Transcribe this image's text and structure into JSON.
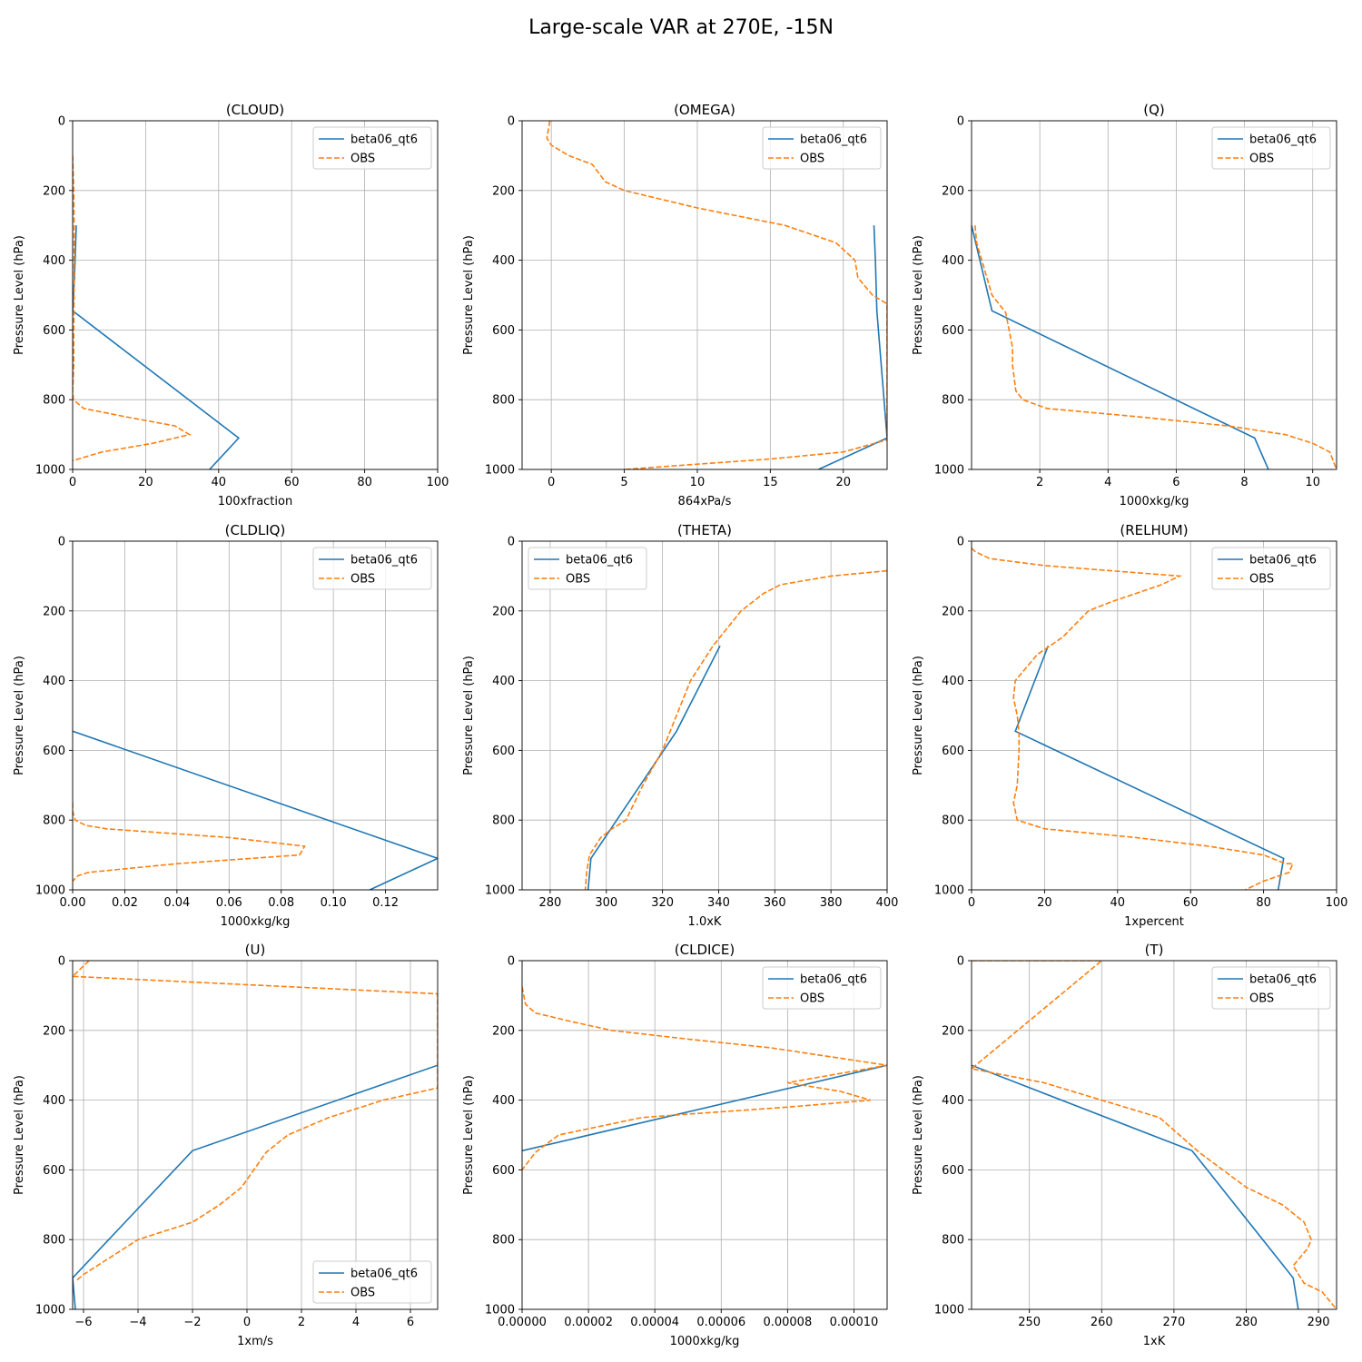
{
  "title": "Large-scale VAR at 270E, -15N",
  "colors": {
    "model": "#1f77b4",
    "obs": "#ff7f0e"
  },
  "chart_data": [
    {
      "type": "line",
      "title": "(CLOUD)",
      "xlabel": "100xfraction",
      "ylabel": "Pressure Level (hPa)",
      "xlim": [
        0,
        100
      ],
      "ylim": [
        1000,
        0
      ],
      "grid": true,
      "legend": "upper-right",
      "xticks": [
        0,
        20,
        40,
        60,
        80,
        100
      ],
      "xtick_labels": [
        "0",
        "20",
        "40",
        "60",
        "80",
        "100"
      ],
      "yticks": [
        0,
        200,
        400,
        600,
        800,
        1000
      ],
      "ytick_labels": [
        "0",
        "200",
        "400",
        "600",
        "800",
        "1000"
      ],
      "series": [
        {
          "name": "beta06_qt6",
          "style": "solid",
          "x": [
            1,
            0.5,
            0,
            45.5,
            37.5
          ],
          "y": [
            300,
            450,
            545,
            910,
            1000
          ]
        },
        {
          "name": "OBS",
          "style": "dashed",
          "x": [
            0,
            0.3,
            0.4,
            0.4,
            0.3,
            0.3,
            0,
            0.2,
            3,
            15,
            28,
            32,
            22,
            8,
            0
          ],
          "y": [
            100,
            200,
            300,
            500,
            600,
            700,
            775,
            800,
            825,
            850,
            875,
            900,
            925,
            950,
            975
          ]
        }
      ]
    },
    {
      "type": "line",
      "title": "(OMEGA)",
      "xlabel": "864xPa/s",
      "ylabel": "Pressure Level (hPa)",
      "xlim": [
        -2,
        23
      ],
      "ylim": [
        1000,
        0
      ],
      "grid": true,
      "legend": "upper-right",
      "xticks": [
        0,
        5,
        10,
        15,
        20
      ],
      "xtick_labels": [
        "0",
        "5",
        "10",
        "15",
        "20"
      ],
      "yticks": [
        0,
        200,
        400,
        600,
        800,
        1000
      ],
      "ytick_labels": [
        "0",
        "200",
        "400",
        "600",
        "800",
        "1000"
      ],
      "series": [
        {
          "name": "beta06_qt6",
          "style": "solid",
          "x": [
            22.1,
            22.2,
            22.3,
            23,
            18.3
          ],
          "y": [
            300,
            400,
            545,
            910,
            1000
          ]
        },
        {
          "name": "OBS",
          "style": "dashed",
          "x": [
            -0.1,
            -0.3,
            0,
            1.2,
            2.8,
            3.7,
            5,
            7.5,
            10,
            16,
            19.5,
            20.8,
            21,
            22,
            23,
            23,
            23,
            23,
            23,
            23,
            23,
            23,
            23,
            20,
            15,
            10,
            5
          ],
          "y": [
            0,
            50,
            70,
            100,
            125,
            175,
            200,
            225,
            250,
            300,
            350,
            400,
            450,
            500,
            525,
            550,
            600,
            650,
            700,
            750,
            800,
            850,
            915,
            950,
            970,
            985,
            1000
          ]
        }
      ]
    },
    {
      "type": "line",
      "title": "(Q)",
      "xlabel": "1000xkg/kg",
      "ylabel": "Pressure Level (hPa)",
      "xlim": [
        0,
        10.7
      ],
      "ylim": [
        1000,
        0
      ],
      "grid": true,
      "legend": "upper-right",
      "xticks": [
        2,
        4,
        6,
        8,
        10
      ],
      "xtick_labels": [
        "2",
        "4",
        "6",
        "8",
        "10"
      ],
      "yticks": [
        0,
        200,
        400,
        600,
        800,
        1000
      ],
      "ytick_labels": [
        "0",
        "200",
        "400",
        "600",
        "800",
        "1000"
      ],
      "series": [
        {
          "name": "beta06_qt6",
          "style": "solid",
          "x": [
            0,
            0.6,
            8.3,
            8.7
          ],
          "y": [
            300,
            545,
            910,
            1000
          ]
        },
        {
          "name": "OBS",
          "style": "dashed",
          "x": [
            0.1,
            0.15,
            0.3,
            0.6,
            1,
            1.1,
            1.2,
            1.2,
            1.3,
            1.5,
            2.2,
            5,
            7.5,
            9.2,
            10,
            10.5,
            10.7
          ],
          "y": [
            300,
            350,
            400,
            500,
            550,
            600,
            650,
            700,
            775,
            800,
            825,
            850,
            875,
            900,
            925,
            950,
            1000
          ]
        }
      ]
    },
    {
      "type": "line",
      "title": "(CLDLIQ)",
      "xlabel": "1000xkg/kg",
      "ylabel": "Pressure Level (hPa)",
      "xlim": [
        0,
        0.14
      ],
      "ylim": [
        1000,
        0
      ],
      "grid": true,
      "legend": "upper-right",
      "xticks": [
        0,
        0.02,
        0.04,
        0.06,
        0.08,
        0.1,
        0.12
      ],
      "xtick_labels": [
        "0.00",
        "0.02",
        "0.04",
        "0.06",
        "0.08",
        "0.10",
        "0.12"
      ],
      "yticks": [
        0,
        200,
        400,
        600,
        800,
        1000
      ],
      "ytick_labels": [
        "0",
        "200",
        "400",
        "600",
        "800",
        "1000"
      ],
      "series": [
        {
          "name": "beta06_qt6",
          "style": "solid",
          "x": [
            0,
            0.14,
            0.114
          ],
          "y": [
            545,
            910,
            1000
          ]
        },
        {
          "name": "OBS",
          "style": "dashed",
          "x": [
            0,
            0,
            0.001,
            0.005,
            0.013,
            0.06,
            0.089,
            0.087,
            0.04,
            0.006,
            0.002,
            0
          ],
          "y": [
            750,
            775,
            800,
            815,
            825,
            850,
            875,
            900,
            925,
            950,
            960,
            975
          ]
        }
      ]
    },
    {
      "type": "line",
      "title": "(THETA)",
      "xlabel": "1.0xK",
      "ylabel": "Pressure Level (hPa)",
      "xlim": [
        270,
        400
      ],
      "ylim": [
        1000,
        0
      ],
      "grid": true,
      "legend": "upper-left",
      "xticks": [
        280,
        300,
        320,
        340,
        360,
        380,
        400
      ],
      "xtick_labels": [
        "280",
        "300",
        "320",
        "340",
        "360",
        "380",
        "400"
      ],
      "yticks": [
        0,
        200,
        400,
        600,
        800,
        1000
      ],
      "ytick_labels": [
        "0",
        "200",
        "400",
        "600",
        "800",
        "1000"
      ],
      "series": [
        {
          "name": "beta06_qt6",
          "style": "solid",
          "x": [
            340.5,
            325,
            294.5,
            293.5
          ],
          "y": [
            300,
            545,
            910,
            1000
          ]
        },
        {
          "name": "OBS",
          "style": "dashed",
          "x": [
            400,
            380,
            362,
            356,
            348,
            343,
            338,
            330,
            320,
            313,
            307,
            302,
            298,
            294,
            293,
            292.5
          ],
          "y": [
            85,
            100,
            125,
            150,
            200,
            250,
            300,
            400,
            600,
            700,
            800,
            825,
            850,
            900,
            950,
            1000
          ]
        }
      ]
    },
    {
      "type": "line",
      "title": "(RELHUM)",
      "xlabel": "1xpercent",
      "ylabel": "Pressure Level (hPa)",
      "xlim": [
        0,
        100
      ],
      "ylim": [
        1000,
        0
      ],
      "grid": true,
      "legend": "upper-right",
      "xticks": [
        0,
        20,
        40,
        60,
        80,
        100
      ],
      "xtick_labels": [
        "0",
        "20",
        "40",
        "60",
        "80",
        "100"
      ],
      "yticks": [
        0,
        200,
        400,
        600,
        800,
        1000
      ],
      "ytick_labels": [
        "0",
        "200",
        "400",
        "600",
        "800",
        "1000"
      ],
      "series": [
        {
          "name": "beta06_qt6",
          "style": "solid",
          "x": [
            21,
            12,
            85.5,
            84
          ],
          "y": [
            300,
            545,
            910,
            1000
          ]
        },
        {
          "name": "OBS",
          "style": "dashed",
          "x": [
            0,
            1,
            5,
            20,
            57,
            52,
            45,
            38,
            32,
            25,
            18,
            14,
            12,
            11.5,
            12.5,
            13,
            13,
            12.5,
            11.5,
            12.5,
            20,
            45,
            65,
            80,
            86,
            88,
            87,
            80,
            75
          ],
          "y": [
            20,
            30,
            50,
            70,
            100,
            125,
            150,
            175,
            200,
            275,
            325,
            375,
            400,
            450,
            500,
            550,
            600,
            700,
            750,
            800,
            825,
            850,
            875,
            900,
            925,
            925,
            950,
            975,
            1000
          ]
        }
      ]
    },
    {
      "type": "line",
      "title": "(U)",
      "xlabel": "1xm/s",
      "ylabel": "Pressure Level (hPa)",
      "xlim": [
        -6.4,
        7
      ],
      "ylim": [
        1000,
        0
      ],
      "grid": true,
      "legend": "lower-right",
      "xticks": [
        -6,
        -4,
        -2,
        0,
        2,
        4,
        6
      ],
      "xtick_labels": [
        "−6",
        "−4",
        "−2",
        "0",
        "2",
        "4",
        "6"
      ],
      "yticks": [
        0,
        200,
        400,
        600,
        800,
        1000
      ],
      "ytick_labels": [
        "0",
        "200",
        "400",
        "600",
        "800",
        "1000"
      ],
      "series": [
        {
          "name": "beta06_qt6",
          "style": "solid",
          "x": [
            7,
            -2,
            -6.4,
            -6.3
          ],
          "y": [
            300,
            545,
            910,
            1000
          ]
        },
        {
          "name": "OBS",
          "style": "dashed",
          "x": [
            -5.8,
            -6.4,
            7,
            7,
            5,
            3,
            1.5,
            0.7,
            -0.2,
            -1,
            -2,
            -4,
            -5,
            -6,
            -6.3
          ],
          "y": [
            0,
            45,
            95,
            365,
            400,
            450,
            500,
            550,
            650,
            700,
            750,
            800,
            850,
            900,
            920
          ]
        }
      ]
    },
    {
      "type": "line",
      "title": "(CLDICE)",
      "xlabel": "1000xkg/kg",
      "ylabel": "Pressure Level (hPa)",
      "xlim": [
        0,
        0.00011
      ],
      "ylim": [
        1000,
        0
      ],
      "grid": true,
      "legend": "upper-right",
      "xticks": [
        0,
        2e-05,
        4e-05,
        6e-05,
        8e-05,
        0.0001
      ],
      "xtick_labels": [
        "0.00000",
        "0.00002",
        "0.00004",
        "0.00006",
        "0.00008",
        "0.00010"
      ],
      "yticks": [
        0,
        200,
        400,
        600,
        800,
        1000
      ],
      "ytick_labels": [
        "0",
        "200",
        "400",
        "600",
        "800",
        "1000"
      ],
      "series": [
        {
          "name": "beta06_qt6",
          "style": "solid",
          "x": [
            0.00011,
            0
          ],
          "y": [
            300,
            545
          ]
        },
        {
          "name": "OBS",
          "style": "dashed",
          "x": [
            0,
            1e-06,
            4e-06,
            1.5e-05,
            2.7e-05,
            5e-05,
            7.5e-05,
            0.00011,
            8e-05,
            9.6e-05,
            0.000105,
            8e-05,
            5e-05,
            3.6e-05,
            1.1e-05,
            4e-06,
            2e-06,
            0
          ],
          "y": [
            75,
            125,
            150,
            175,
            200,
            225,
            250,
            300,
            350,
            375,
            400,
            420,
            440,
            450,
            500,
            550,
            575,
            600
          ]
        }
      ]
    },
    {
      "type": "line",
      "title": "(T)",
      "xlabel": "1xK",
      "ylabel": "Pressure Level (hPa)",
      "xlim": [
        242,
        292.5
      ],
      "ylim": [
        1000,
        0
      ],
      "grid": true,
      "legend": "upper-right",
      "xticks": [
        250,
        260,
        270,
        280,
        290
      ],
      "xtick_labels": [
        "250",
        "260",
        "270",
        "280",
        "290"
      ],
      "yticks": [
        0,
        200,
        400,
        600,
        800,
        1000
      ],
      "ytick_labels": [
        "0",
        "200",
        "400",
        "600",
        "800",
        "1000"
      ],
      "series": [
        {
          "name": "beta06_qt6",
          "style": "solid",
          "x": [
            242,
            272.5,
            286.5,
            287.2
          ],
          "y": [
            300,
            545,
            910,
            1000
          ]
        },
        {
          "name": "OBS",
          "style": "dashed",
          "x": [
            242,
            260,
            242,
            252,
            260,
            268,
            273.5,
            280,
            285,
            288,
            289,
            288.5,
            286.5,
            288,
            290.5,
            292.5
          ],
          "y": [
            0,
            0,
            310,
            350,
            400,
            450,
            550,
            650,
            700,
            750,
            800,
            825,
            875,
            925,
            950,
            1000
          ]
        }
      ]
    }
  ]
}
